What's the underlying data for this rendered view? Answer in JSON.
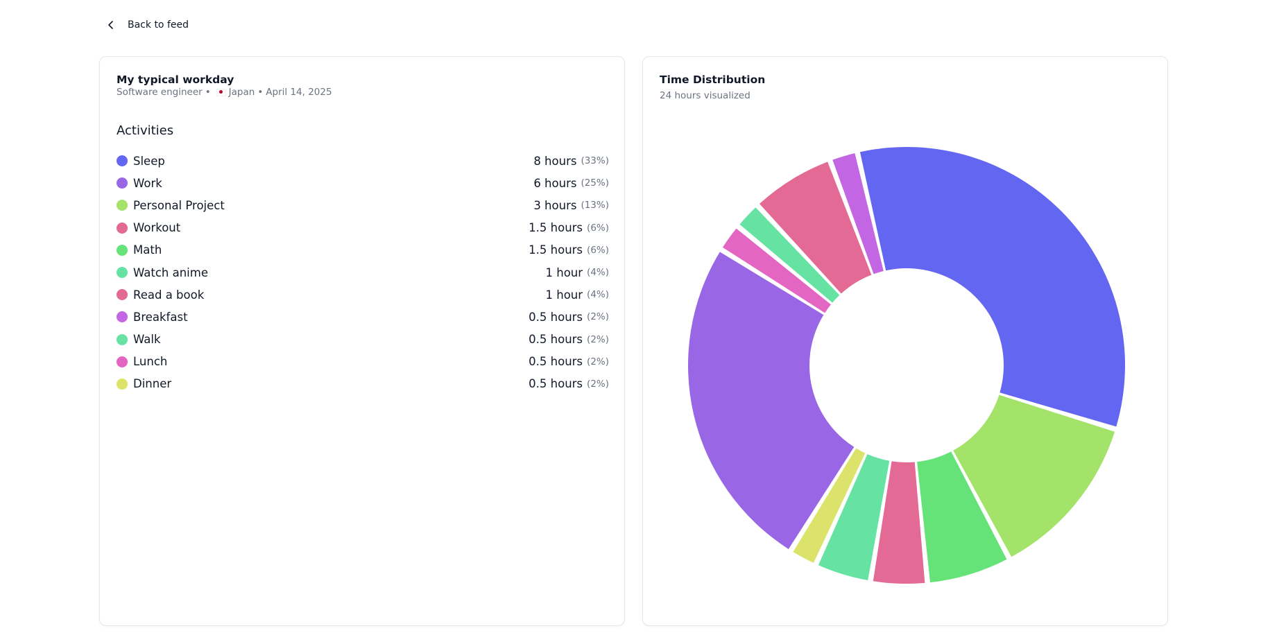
{
  "nav": {
    "back_label": "Back to feed"
  },
  "profile": {
    "title": "My typical workday",
    "occupation": "Software engineer",
    "separator": "•",
    "country": "Japan",
    "date": "April 14, 2025"
  },
  "activities": {
    "heading": "Activities",
    "items": [
      {
        "name": "Sleep",
        "duration": "8 hours",
        "percent": "(33%)",
        "color": "#6366f1"
      },
      {
        "name": "Work",
        "duration": "6 hours",
        "percent": "(25%)",
        "color": "#9966e5"
      },
      {
        "name": "Personal Project",
        "duration": "3 hours",
        "percent": "(13%)",
        "color": "#a3e36a"
      },
      {
        "name": "Workout",
        "duration": "1.5 hours",
        "percent": "(6%)",
        "color": "#e36a94"
      },
      {
        "name": "Math",
        "duration": "1.5 hours",
        "percent": "(6%)",
        "color": "#66e378"
      },
      {
        "name": "Watch anime",
        "duration": "1 hour",
        "percent": "(4%)",
        "color": "#66e3a3"
      },
      {
        "name": "Read a book",
        "duration": "1 hour",
        "percent": "(4%)",
        "color": "#e36a94"
      },
      {
        "name": "Breakfast",
        "duration": "0.5 hours",
        "percent": "(2%)",
        "color": "#c266e3"
      },
      {
        "name": "Walk",
        "duration": "0.5 hours",
        "percent": "(2%)",
        "color": "#66e3a3"
      },
      {
        "name": "Lunch",
        "duration": "0.5 hours",
        "percent": "(2%)",
        "color": "#e366c2"
      },
      {
        "name": "Dinner",
        "duration": "0.5 hours",
        "percent": "(2%)",
        "color": "#dbe36a"
      }
    ]
  },
  "distribution": {
    "title": "Time Distribution",
    "subtitle": "24 hours visualized"
  },
  "chart_data": {
    "type": "pie",
    "variant": "donut",
    "total_hours": 24,
    "slices": [
      {
        "label": "Sleep",
        "value": 8,
        "color": "#6366f1"
      },
      {
        "label": "Personal Project",
        "value": 3,
        "color": "#a3e36a"
      },
      {
        "label": "Math",
        "value": 1.5,
        "color": "#66e378"
      },
      {
        "label": "Read a book",
        "value": 1,
        "color": "#e36a94"
      },
      {
        "label": "Watch anime",
        "value": 1,
        "color": "#66e3a3"
      },
      {
        "label": "Dinner",
        "value": 0.5,
        "color": "#dbe36a"
      },
      {
        "label": "Work",
        "value": 6,
        "color": "#9966e5"
      },
      {
        "label": "Lunch",
        "value": 0.5,
        "color": "#e366c2"
      },
      {
        "label": "Walk",
        "value": 0.5,
        "color": "#66e3a3"
      },
      {
        "label": "Workout",
        "value": 1.5,
        "color": "#e36a94"
      },
      {
        "label": "Breakfast",
        "value": 0.5,
        "color": "#c266e3"
      }
    ]
  }
}
